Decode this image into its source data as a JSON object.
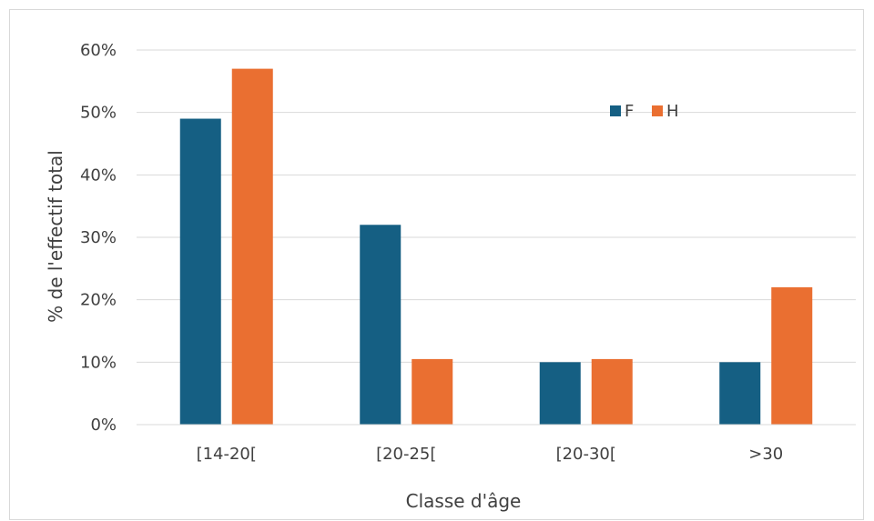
{
  "chart_data": {
    "type": "bar",
    "title": "",
    "xlabel": "Classe d'âge",
    "ylabel": "% de l'effectif total",
    "categories": [
      "[14-20[",
      "[20-25[",
      "[20-30[",
      ">30"
    ],
    "series": [
      {
        "name": "F",
        "color": "#155f83",
        "values": [
          0.49,
          0.32,
          0.1,
          0.1
        ]
      },
      {
        "name": "H",
        "color": "#ea6f31",
        "values": [
          0.57,
          0.105,
          0.105,
          0.22
        ]
      }
    ],
    "ylim": [
      0,
      0.6
    ],
    "yticks": [
      0,
      0.1,
      0.2,
      0.3,
      0.4,
      0.5,
      0.6
    ],
    "ytick_labels": [
      "0%",
      "10%",
      "20%",
      "30%",
      "40%",
      "50%",
      "60%"
    ],
    "grid": true,
    "legend": "top-right"
  }
}
